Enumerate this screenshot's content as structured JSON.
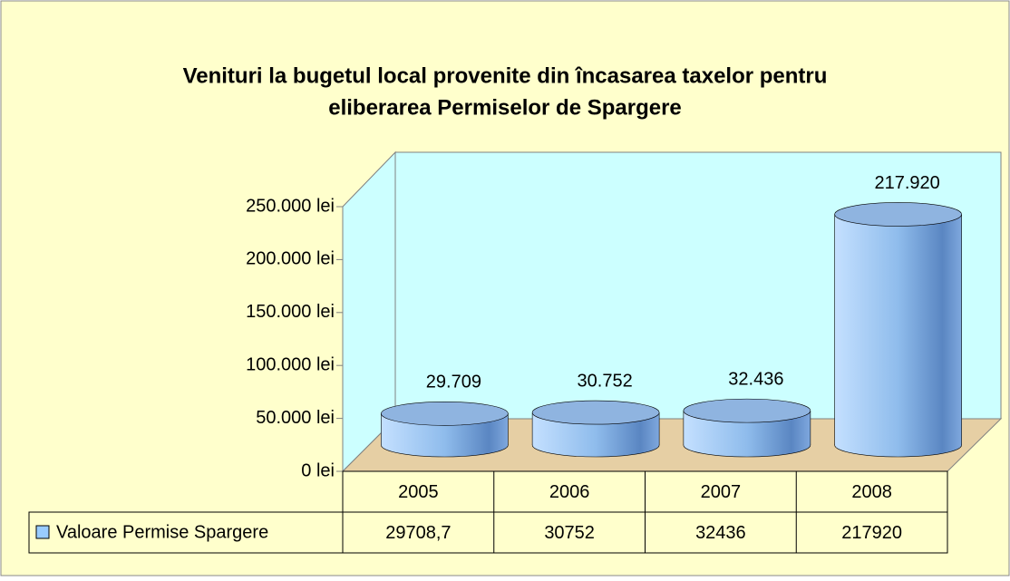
{
  "chart_data": {
    "type": "bar3d",
    "title": [
      "Venituri la bugetul local provenite din încasarea taxelor pentru",
      "eliberarea Permiselor de  Spargere"
    ],
    "categories": [
      "2005",
      "2006",
      "2007",
      "2008"
    ],
    "series": [
      {
        "name": "Valoare Permise Spargere",
        "color": "#99ccff",
        "values": [
          29708.7,
          30752,
          32436,
          217920
        ],
        "value_labels": [
          "29.709",
          "30.752",
          "32.436",
          "217.920"
        ],
        "table_labels": [
          "29708,7",
          "30752",
          "32436",
          "217920"
        ]
      }
    ],
    "ylim": [
      0,
      250000
    ],
    "yticks": [
      {
        "value": 0,
        "label": "0 lei"
      },
      {
        "value": 50000,
        "label": "50.000 lei"
      },
      {
        "value": 100000,
        "label": "100.000 lei"
      },
      {
        "value": 150000,
        "label": "150.000 lei"
      },
      {
        "value": 200000,
        "label": "200.000 lei"
      },
      {
        "value": 250000,
        "label": "250.000 lei"
      }
    ]
  }
}
